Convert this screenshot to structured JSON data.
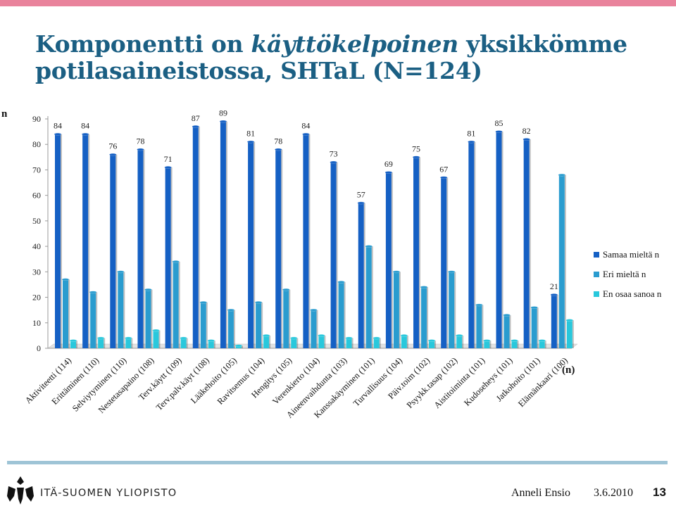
{
  "header": {
    "title_part1": "Komponentti on ",
    "title_italic": "käyttökelpoinen",
    "title_part2": " yksikkömme",
    "title_line2": "potilasaineistossa, SHTaL (N=124)"
  },
  "footer": {
    "university": "ITÄ-SUOMEN YLIOPISTO",
    "author": "Anneli Ensio",
    "date": "3.6.2010",
    "page": "13"
  },
  "colors": {
    "series1": "#1560c4",
    "series2": "#2a9ccf",
    "series3": "#29c8dc",
    "accent_band": "#e9839c",
    "title": "#1b5f83"
  },
  "chart_data": {
    "type": "bar",
    "ylabel": "n",
    "xlabel": "(n)",
    "ylim": [
      0,
      90
    ],
    "yticks": [
      0,
      10,
      20,
      30,
      40,
      50,
      60,
      70,
      80,
      90
    ],
    "grid": false,
    "legend_position": "right",
    "categories": [
      "Aktiviteetti (114)",
      "Erittäminen (110)",
      "Selviytyminen (110)",
      "Nestetasapaino (108)",
      "Terv.käytt (109)",
      "Terv.palv.käyt (108)",
      "Lääkehoito (105)",
      "Ravitsemus (104)",
      "Hengitys (105)",
      "Verenkierto (104)",
      "Aineenvaihdunta (103)",
      "Kanssakäyminen (101)",
      "Turvallisuus (104)",
      "Päiv.toim (102)",
      "Psyykk.tasap (102)",
      "Aistitoiminta (101)",
      "Kudoseheys (101)",
      "Jatkohoito (101)",
      "Elämänkaari (100)"
    ],
    "series": [
      {
        "name": "Samaa mieltä n",
        "values": [
          84,
          84,
          76,
          78,
          71,
          87,
          89,
          81,
          78,
          84,
          73,
          57,
          69,
          75,
          67,
          81,
          85,
          82,
          21
        ]
      },
      {
        "name": "Eri mieltä n",
        "values": [
          27,
          22,
          30,
          23,
          34,
          18,
          15,
          18,
          23,
          15,
          26,
          40,
          30,
          24,
          30,
          17,
          13,
          16,
          68
        ]
      },
      {
        "name": "En osaa sanoa n",
        "values": [
          3,
          4,
          4,
          7,
          4,
          3,
          1,
          5,
          4,
          5,
          4,
          4,
          5,
          3,
          5,
          3,
          3,
          3,
          11
        ]
      }
    ],
    "data_labels_series": "Samaa mieltä n"
  }
}
